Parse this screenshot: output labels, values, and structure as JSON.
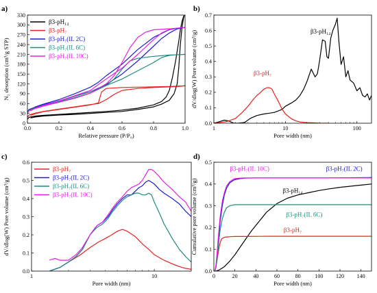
{
  "colors": {
    "pH14": "#000000",
    "pH7": "#e8201d",
    "IL2C": "#1a1ad6",
    "IL6C": "#1c8b7c",
    "IL10C": "#e41ee4"
  },
  "chart_data": [
    {
      "panel": "a)",
      "type": "line",
      "xlabel": "Relative pressure (P/P₀)",
      "ylabel": "N₂ desorption (cm³/g STP)",
      "xlim": [
        0.0,
        1.0
      ],
      "ylim": [
        0,
        330
      ],
      "xticks": [
        "0.0",
        "0.2",
        "0.4",
        "0.6",
        "0.8",
        "1.0"
      ],
      "yticks": [
        "0",
        "30",
        "60",
        "90",
        "120",
        "150",
        "180",
        "210",
        "240",
        "270",
        "300",
        "330"
      ],
      "legend_position": "top-left",
      "series": [
        {
          "name": "β3-pH₁₄",
          "color": "pH14",
          "x": [
            0.0,
            0.01,
            0.05,
            0.1,
            0.2,
            0.3,
            0.4,
            0.5,
            0.6,
            0.7,
            0.8,
            0.85,
            0.88,
            0.9,
            0.92,
            0.94,
            0.96,
            0.97,
            0.98,
            0.99,
            0.995,
            0.99,
            0.98,
            0.97,
            0.96,
            0.95,
            0.93,
            0.9,
            0.85,
            0.8,
            0.7,
            0.6,
            0.5,
            0.4,
            0.3,
            0.2,
            0.1,
            0.05,
            0.02
          ],
          "y": [
            12,
            18,
            22,
            24,
            27,
            30,
            33,
            36,
            40,
            46,
            56,
            66,
            80,
            100,
            140,
            190,
            250,
            285,
            310,
            325,
            330,
            320,
            290,
            240,
            170,
            120,
            90,
            70,
            58,
            50,
            42,
            36,
            33,
            30,
            27,
            25,
            22,
            19,
            16
          ]
        },
        {
          "name": "β3-pH₇",
          "color": "pH7",
          "x": [
            0.0,
            0.01,
            0.05,
            0.1,
            0.2,
            0.3,
            0.4,
            0.45,
            0.5,
            0.55,
            0.6,
            0.7,
            0.8,
            0.9,
            0.95,
            1.0,
            0.95,
            0.9,
            0.8,
            0.7,
            0.6,
            0.5,
            0.47,
            0.45,
            0.4,
            0.3,
            0.2,
            0.1,
            0.05,
            0.02
          ],
          "y": [
            18,
            25,
            31,
            36,
            43,
            50,
            57,
            60,
            72,
            88,
            100,
            106,
            109,
            111,
            112,
            114,
            113,
            112,
            111,
            110,
            109,
            106,
            95,
            62,
            56,
            49,
            42,
            35,
            29,
            24
          ]
        },
        {
          "name": "β3-pH₇(IL 2C)",
          "color": "IL2C",
          "x": [
            0.0,
            0.01,
            0.05,
            0.1,
            0.2,
            0.3,
            0.4,
            0.5,
            0.6,
            0.7,
            0.8,
            0.85,
            0.9,
            0.95,
            1.0,
            0.95,
            0.9,
            0.8,
            0.7,
            0.6,
            0.5,
            0.45,
            0.4,
            0.3,
            0.2,
            0.1,
            0.05,
            0.02
          ],
          "y": [
            35,
            42,
            49,
            56,
            68,
            82,
            96,
            118,
            150,
            190,
            235,
            258,
            275,
            288,
            292,
            290,
            285,
            262,
            225,
            180,
            145,
            125,
            110,
            90,
            72,
            58,
            50,
            42
          ]
        },
        {
          "name": "β3-pH₇(IL 6C)",
          "color": "IL6C",
          "x": [
            0.0,
            0.01,
            0.05,
            0.1,
            0.2,
            0.3,
            0.4,
            0.5,
            0.55,
            0.6,
            0.65,
            0.7,
            0.8,
            0.9,
            1.0,
            0.95,
            0.9,
            0.85,
            0.8,
            0.7,
            0.6,
            0.5,
            0.45,
            0.4,
            0.3,
            0.2,
            0.1,
            0.05,
            0.02
          ],
          "y": [
            32,
            40,
            47,
            54,
            66,
            78,
            92,
            115,
            135,
            165,
            190,
            198,
            204,
            208,
            210,
            209,
            207,
            200,
            185,
            160,
            135,
            115,
            105,
            96,
            82,
            68,
            55,
            47,
            40
          ]
        },
        {
          "name": "β3-pH₇(IL 10C)",
          "color": "IL10C",
          "x": [
            0.0,
            0.01,
            0.05,
            0.1,
            0.2,
            0.3,
            0.4,
            0.5,
            0.55,
            0.6,
            0.65,
            0.7,
            0.75,
            0.8,
            0.9,
            1.0,
            0.95,
            0.9,
            0.85,
            0.8,
            0.7,
            0.6,
            0.5,
            0.45,
            0.4,
            0.3,
            0.2,
            0.1,
            0.05,
            0.02
          ],
          "y": [
            30,
            38,
            45,
            52,
            64,
            76,
            92,
            120,
            145,
            185,
            230,
            262,
            278,
            285,
            288,
            292,
            290,
            286,
            275,
            255,
            210,
            168,
            135,
            118,
            100,
            84,
            68,
            54,
            46,
            38
          ]
        }
      ]
    },
    {
      "panel": "b)",
      "type": "line",
      "xlabel": "Pore width (nm)",
      "ylabel": "dV/dlog(W) Pore volume (cm³/g)",
      "xscale": "log",
      "xlim": [
        1,
        160
      ],
      "ylim": [
        0,
        0.7
      ],
      "xticks": [
        "1",
        "10",
        "100"
      ],
      "yticks": [
        "0.0",
        "0.1",
        "0.2",
        "0.3",
        "0.4",
        "0.5",
        "0.6",
        "0.7"
      ],
      "annotations": [
        {
          "text": "β3-pH₁₄",
          "color": "pH14",
          "x": 31,
          "y": 0.58
        },
        {
          "text": "β3-pH₇",
          "color": "pH7",
          "x": 4.8,
          "y": 0.31
        }
      ],
      "series": [
        {
          "name": "β3-pH₁₄",
          "color": "pH14",
          "x": [
            1,
            1.2,
            1.4,
            1.6,
            1.9,
            2.2,
            2.7,
            3.2,
            4,
            5,
            6,
            7,
            8,
            9,
            10,
            12,
            14,
            16,
            18,
            20,
            23,
            26,
            28,
            30,
            33,
            36,
            38,
            40,
            43,
            46,
            50,
            53,
            56,
            60,
            65,
            70,
            75,
            80,
            90,
            100,
            110,
            120,
            130,
            140,
            150,
            160
          ],
          "y": [
            0.0,
            0.01,
            0.02,
            0.015,
            0.0,
            0.0,
            0.005,
            0.03,
            0.05,
            0.06,
            0.065,
            0.07,
            0.08,
            0.09,
            0.11,
            0.13,
            0.15,
            0.18,
            0.22,
            0.27,
            0.35,
            0.3,
            0.32,
            0.4,
            0.54,
            0.53,
            0.43,
            0.42,
            0.55,
            0.6,
            0.64,
            0.68,
            0.53,
            0.38,
            0.43,
            0.3,
            0.34,
            0.28,
            0.26,
            0.21,
            0.23,
            0.18,
            0.17,
            0.19,
            0.15,
            0.18
          ]
        },
        {
          "name": "β3-pH₇",
          "color": "pH7",
          "x": [
            1,
            1.5,
            2,
            2.5,
            3,
            3.5,
            4,
            4.5,
            5,
            5.5,
            6,
            6.5,
            7,
            8,
            9,
            10,
            12,
            14,
            16,
            20,
            25,
            30,
            40
          ],
          "y": [
            0.0,
            0.01,
            0.03,
            0.07,
            0.11,
            0.15,
            0.18,
            0.2,
            0.22,
            0.23,
            0.23,
            0.22,
            0.19,
            0.14,
            0.09,
            0.06,
            0.03,
            0.015,
            0.008,
            0.004,
            0.002,
            0.0,
            0.0
          ]
        }
      ]
    },
    {
      "panel": "c)",
      "type": "line",
      "xlabel": "Pore width (nm)",
      "ylabel": "dV/dlog(W) Pore volume (cm³/g)",
      "xscale": "log",
      "xlim": [
        1,
        20
      ],
      "ylim": [
        0,
        0.6
      ],
      "xticks": [
        "1",
        "10"
      ],
      "yticks": [
        "0.0",
        "0.1",
        "0.2",
        "0.3",
        "0.4",
        "0.5",
        "0.6"
      ],
      "legend_position": "top-left",
      "series": [
        {
          "name": "β3-pH₇",
          "color": "pH7",
          "x": [
            1.4,
            1.7,
            2,
            2.5,
            3,
            3.5,
            4,
            4.5,
            5,
            5.5,
            6,
            7,
            8,
            9,
            10,
            12,
            14,
            16,
            18,
            20
          ],
          "y": [
            0.0,
            0.02,
            0.05,
            0.09,
            0.13,
            0.16,
            0.18,
            0.2,
            0.22,
            0.23,
            0.22,
            0.19,
            0.15,
            0.12,
            0.09,
            0.06,
            0.04,
            0.025,
            0.015,
            0.01
          ]
        },
        {
          "name": "β3-pH₇(IL 2C)",
          "color": "IL2C",
          "x": [
            1.4,
            1.7,
            2,
            2.3,
            2.6,
            3,
            3.4,
            3.8,
            4.2,
            4.6,
            5,
            5.5,
            6,
            6.5,
            7,
            7.5,
            8,
            8.5,
            9,
            9.5,
            10,
            11,
            12,
            14,
            16,
            18,
            20
          ],
          "y": [
            0.0,
            0.02,
            0.05,
            0.08,
            0.12,
            0.2,
            0.25,
            0.27,
            0.3,
            0.34,
            0.37,
            0.4,
            0.42,
            0.42,
            0.44,
            0.46,
            0.47,
            0.49,
            0.5,
            0.49,
            0.48,
            0.45,
            0.43,
            0.4,
            0.37,
            0.33,
            0.3
          ]
        },
        {
          "name": "β3-pH₇(IL 6C)",
          "color": "IL6C",
          "x": [
            1.4,
            1.7,
            2,
            2.3,
            2.6,
            3,
            3.4,
            3.8,
            4.2,
            4.6,
            5,
            5.5,
            6,
            6.5,
            7,
            7.5,
            8,
            8.5,
            9,
            9.5,
            10,
            11,
            12,
            14,
            16,
            18,
            20
          ],
          "y": [
            0.0,
            0.02,
            0.05,
            0.08,
            0.12,
            0.2,
            0.24,
            0.26,
            0.29,
            0.33,
            0.36,
            0.39,
            0.41,
            0.42,
            0.43,
            0.43,
            0.42,
            0.42,
            0.43,
            0.42,
            0.38,
            0.32,
            0.26,
            0.18,
            0.12,
            0.08,
            0.05
          ]
        },
        {
          "name": "β3-pH₇(IL 10C)",
          "color": "IL10C",
          "x": [
            1.4,
            1.55,
            1.7,
            2,
            2.3,
            2.6,
            3,
            3.4,
            3.8,
            4.2,
            4.6,
            5,
            5.5,
            6,
            6.5,
            7,
            7.5,
            8,
            8.5,
            9,
            9.5,
            10,
            11,
            12,
            14,
            16,
            18,
            20
          ],
          "y": [
            0.06,
            0.07,
            0.06,
            0.06,
            0.09,
            0.13,
            0.2,
            0.25,
            0.27,
            0.31,
            0.35,
            0.38,
            0.41,
            0.44,
            0.46,
            0.47,
            0.48,
            0.5,
            0.53,
            0.56,
            0.56,
            0.55,
            0.52,
            0.49,
            0.45,
            0.41,
            0.38,
            0.33
          ]
        }
      ]
    },
    {
      "panel": "d)",
      "type": "line",
      "xlabel": "Pore width (nm)",
      "ylabel": "Cumulative pore volume (cm³/g)",
      "xlim": [
        0,
        150
      ],
      "ylim": [
        0,
        0.5
      ],
      "xticks": [
        "0",
        "20",
        "40",
        "60",
        "80",
        "100",
        "120",
        "140"
      ],
      "yticks": [
        "0.0",
        "0.1",
        "0.2",
        "0.3",
        "0.4",
        "0.5"
      ],
      "annotations": [
        {
          "text": "β3-pH₇(IL 10C)",
          "color": "IL10C",
          "x": 34,
          "y": 0.46
        },
        {
          "text": "β3-pH₇(IL 2C)",
          "color": "IL2C",
          "x": 124,
          "y": 0.46
        },
        {
          "text": "β3-pH₁₄",
          "color": "pH14",
          "x": 75,
          "y": 0.36
        },
        {
          "text": "β3-pH₇(IL 6C)",
          "color": "IL6C",
          "x": 86,
          "y": 0.25
        },
        {
          "text": "β3-pH₇",
          "color": "pH7",
          "x": 75,
          "y": 0.18
        }
      ],
      "series": [
        {
          "name": "β3-pH₁₄",
          "color": "pH14",
          "x": [
            2,
            5,
            10,
            15,
            20,
            25,
            30,
            35,
            40,
            45,
            50,
            55,
            60,
            70,
            80,
            90,
            100,
            110,
            120,
            130,
            140,
            150
          ],
          "y": [
            0.0,
            0.005,
            0.02,
            0.045,
            0.075,
            0.11,
            0.145,
            0.18,
            0.21,
            0.24,
            0.27,
            0.29,
            0.31,
            0.335,
            0.35,
            0.36,
            0.37,
            0.378,
            0.385,
            0.39,
            0.395,
            0.4
          ]
        },
        {
          "name": "β3-pH₇",
          "color": "pH7",
          "x": [
            1,
            2,
            3,
            4,
            5,
            6,
            7,
            8,
            10,
            12,
            15,
            20,
            30,
            50,
            80,
            110,
            150
          ],
          "y": [
            0.0,
            0.02,
            0.05,
            0.08,
            0.11,
            0.13,
            0.145,
            0.15,
            0.155,
            0.157,
            0.158,
            0.159,
            0.159,
            0.16,
            0.16,
            0.16,
            0.16
          ]
        },
        {
          "name": "β3-pH₇(IL 2C)",
          "color": "IL2C",
          "x": [
            1,
            2,
            3,
            4,
            5,
            6,
            8,
            10,
            12,
            15,
            18,
            20,
            25,
            30,
            40,
            60,
            80,
            110,
            150
          ],
          "y": [
            0.0,
            0.02,
            0.06,
            0.12,
            0.18,
            0.23,
            0.3,
            0.35,
            0.38,
            0.405,
            0.415,
            0.42,
            0.425,
            0.427,
            0.428,
            0.428,
            0.428,
            0.428,
            0.43
          ]
        },
        {
          "name": "β3-pH₇(IL 6C)",
          "color": "IL6C",
          "x": [
            1,
            2,
            3,
            4,
            5,
            6,
            8,
            10,
            12,
            15,
            20,
            25,
            30,
            50,
            80,
            110,
            150
          ],
          "y": [
            0.0,
            0.02,
            0.05,
            0.1,
            0.15,
            0.19,
            0.24,
            0.27,
            0.29,
            0.3,
            0.305,
            0.305,
            0.305,
            0.305,
            0.305,
            0.305,
            0.305
          ]
        },
        {
          "name": "β3-pH₇(IL 10C)",
          "color": "IL10C",
          "x": [
            1,
            2,
            3,
            4,
            5,
            6,
            8,
            10,
            12,
            15,
            18,
            20,
            25,
            30,
            40,
            60,
            80,
            110,
            150
          ],
          "y": [
            0.0,
            0.03,
            0.08,
            0.14,
            0.2,
            0.25,
            0.32,
            0.36,
            0.39,
            0.41,
            0.42,
            0.425,
            0.427,
            0.428,
            0.428,
            0.428,
            0.428,
            0.428,
            0.428
          ]
        }
      ]
    }
  ]
}
